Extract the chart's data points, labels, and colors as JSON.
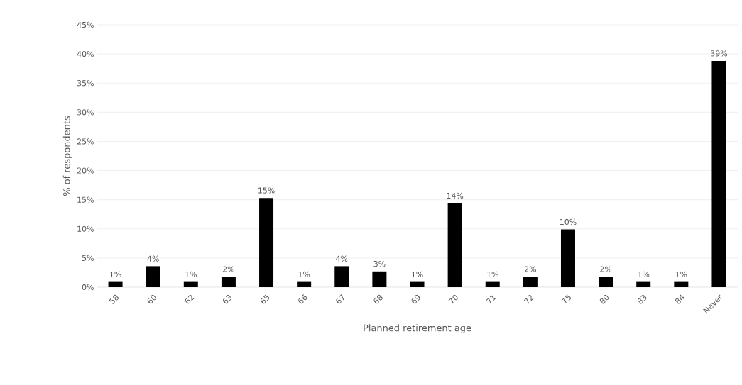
{
  "chart_data": {
    "type": "bar",
    "xlabel": "Planned retirement age",
    "ylabel": "% of respondents",
    "categories": [
      "58",
      "60",
      "62",
      "63",
      "65",
      "66",
      "67",
      "68",
      "69",
      "70",
      "71",
      "72",
      "75",
      "80",
      "83",
      "84",
      "Never"
    ],
    "values": [
      0.9,
      3.6,
      0.9,
      1.8,
      15.3,
      0.9,
      3.6,
      2.7,
      0.9,
      14.4,
      0.9,
      1.8,
      9.9,
      1.8,
      0.9,
      0.9,
      38.8
    ],
    "value_labels": [
      "1%",
      "4%",
      "1%",
      "2%",
      "15%",
      "1%",
      "4%",
      "3%",
      "1%",
      "14%",
      "1%",
      "2%",
      "10%",
      "2%",
      "1%",
      "1%",
      "39%"
    ],
    "color": "#000000",
    "ylim": [
      0,
      45
    ],
    "yticks": [
      {
        "value": 0,
        "label": "0%"
      },
      {
        "value": 5,
        "label": "5%"
      },
      {
        "value": 10,
        "label": "10%"
      },
      {
        "value": 15,
        "label": "15%"
      },
      {
        "value": 20,
        "label": "20%"
      },
      {
        "value": 25,
        "label": "25%"
      },
      {
        "value": 30,
        "label": "30%"
      },
      {
        "value": 35,
        "label": "35%"
      },
      {
        "value": 40,
        "label": "40%"
      },
      {
        "value": 45,
        "label": "45%"
      }
    ],
    "grid": "y"
  }
}
